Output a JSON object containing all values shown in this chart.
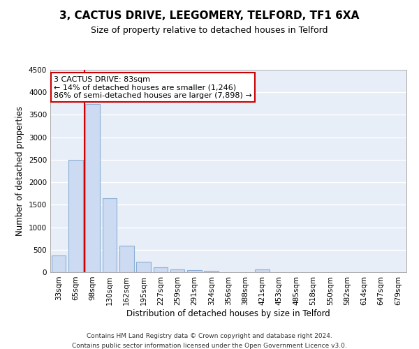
{
  "title": "3, CACTUS DRIVE, LEEGOMERY, TELFORD, TF1 6XA",
  "subtitle": "Size of property relative to detached houses in Telford",
  "xlabel": "Distribution of detached houses by size in Telford",
  "ylabel": "Number of detached properties",
  "categories": [
    "33sqm",
    "65sqm",
    "98sqm",
    "130sqm",
    "162sqm",
    "195sqm",
    "227sqm",
    "259sqm",
    "291sqm",
    "324sqm",
    "356sqm",
    "388sqm",
    "421sqm",
    "453sqm",
    "485sqm",
    "518sqm",
    "550sqm",
    "582sqm",
    "614sqm",
    "647sqm",
    "679sqm"
  ],
  "values": [
    370,
    2500,
    3740,
    1640,
    590,
    230,
    110,
    65,
    40,
    30,
    0,
    0,
    55,
    0,
    0,
    0,
    0,
    0,
    0,
    0,
    0
  ],
  "bar_color": "#ccdaf2",
  "bar_edge_color": "#8aafd4",
  "bar_linewidth": 0.8,
  "property_line_x": 1.5,
  "annotation_line1": "3 CACTUS DRIVE: 83sqm",
  "annotation_line2": "← 14% of detached houses are smaller (1,246)",
  "annotation_line3": "86% of semi-detached houses are larger (7,898) →",
  "annotation_box_color": "#ffffff",
  "annotation_box_edgecolor": "#cc0000",
  "vline_color": "#cc0000",
  "axes_bg_color": "#e8eef8",
  "grid_color": "#ffffff",
  "ylim": [
    0,
    4500
  ],
  "yticks": [
    0,
    500,
    1000,
    1500,
    2000,
    2500,
    3000,
    3500,
    4000,
    4500
  ],
  "footer_line1": "Contains HM Land Registry data © Crown copyright and database right 2024.",
  "footer_line2": "Contains public sector information licensed under the Open Government Licence v3.0.",
  "title_fontsize": 11,
  "subtitle_fontsize": 9,
  "tick_fontsize": 7.5,
  "ylabel_fontsize": 8.5,
  "xlabel_fontsize": 8.5,
  "annotation_fontsize": 8,
  "footer_fontsize": 6.5
}
